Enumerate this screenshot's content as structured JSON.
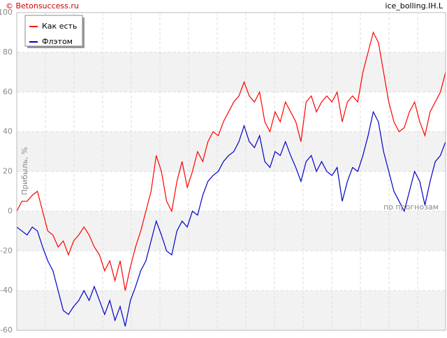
{
  "chart_data": {
    "type": "line",
    "title": "© Betonsuccess.ru",
    "subtitle": "ice_bolling.IH.L",
    "y_label": "Прибыль, %",
    "annotation": "по прогнозам",
    "categories": [
      null,
      null,
      null,
      null,
      null,
      null,
      null,
      null,
      null,
      null,
      null,
      null,
      null,
      null,
      null,
      null,
      null,
      null,
      null,
      null,
      null,
      null,
      null,
      null,
      null,
      null,
      null,
      null,
      null,
      null,
      null,
      null,
      null,
      null,
      null,
      null,
      null,
      null,
      null,
      null,
      null,
      null,
      null,
      null,
      null,
      null,
      null,
      null,
      null,
      null,
      null,
      null,
      null,
      null,
      null,
      null,
      null,
      null,
      null,
      null,
      null,
      null,
      null,
      null,
      null,
      null,
      null,
      null,
      null,
      null,
      null,
      null,
      null,
      null,
      null,
      null,
      null,
      null,
      null,
      null,
      null,
      null,
      null,
      null
    ],
    "series": [
      {
        "name": "Как есть",
        "color": "#ff0000",
        "values": [
          0,
          5,
          5,
          8,
          10,
          0,
          -10,
          -12,
          -18,
          -15,
          -22,
          -15,
          -12,
          -8,
          -12,
          -18,
          -22,
          -30,
          -25,
          -35,
          -25,
          -40,
          -28,
          -18,
          -10,
          0,
          10,
          28,
          20,
          5,
          0,
          15,
          25,
          12,
          20,
          30,
          25,
          35,
          40,
          38,
          45,
          50,
          55,
          58,
          65,
          58,
          55,
          60,
          45,
          40,
          50,
          45,
          55,
          50,
          45,
          35,
          55,
          58,
          50,
          55,
          58,
          55,
          60,
          45,
          55,
          58,
          55,
          70,
          80,
          90,
          85,
          70,
          55,
          45,
          40,
          42,
          50,
          55,
          45,
          38,
          50,
          55,
          60,
          70
        ]
      },
      {
        "name": "Флэтом",
        "color": "#0000cc",
        "values": [
          -8,
          -10,
          -12,
          -8,
          -10,
          -18,
          -25,
          -30,
          -40,
          -50,
          -52,
          -48,
          -45,
          -40,
          -45,
          -38,
          -45,
          -52,
          -45,
          -55,
          -48,
          -58,
          -45,
          -38,
          -30,
          -25,
          -15,
          -5,
          -12,
          -20,
          -22,
          -10,
          -5,
          -8,
          0,
          -2,
          8,
          15,
          18,
          20,
          25,
          28,
          30,
          35,
          43,
          35,
          32,
          38,
          25,
          22,
          30,
          28,
          35,
          28,
          22,
          15,
          25,
          28,
          20,
          25,
          20,
          18,
          22,
          5,
          15,
          22,
          20,
          28,
          38,
          50,
          45,
          30,
          20,
          10,
          5,
          0,
          10,
          20,
          15,
          3,
          15,
          25,
          28,
          35
        ]
      }
    ],
    "ylim": [
      -60,
      100
    ],
    "yticks": [
      -60,
      -40,
      -20,
      0,
      20,
      40,
      60,
      80,
      100
    ],
    "grid": true,
    "legend": "top-left"
  }
}
